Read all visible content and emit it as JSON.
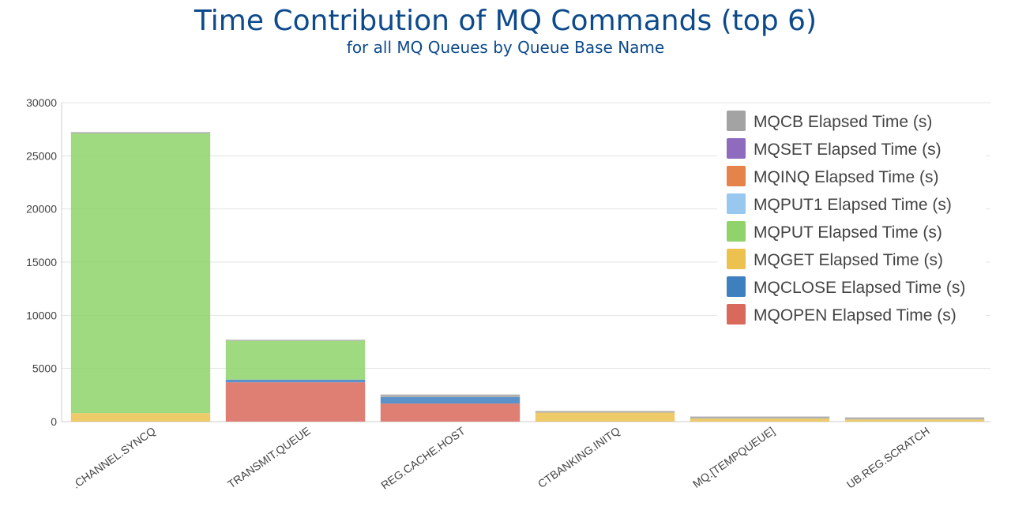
{
  "chart_data": {
    "type": "bar",
    "stacked": true,
    "title": "Time Contribution of MQ Commands (top 6)",
    "subtitle": "for all MQ Queues by Queue Base Name",
    "categories": [
      ".CHANNEL.SYNCQ",
      "TRANSMIT.QUEUE",
      "REG.CACHE.HOST",
      "CTBANKING.INITQ",
      "MQ.[TEMPQUEUE]",
      "UB.REG.SCRATCH"
    ],
    "ylim": [
      0,
      30000
    ],
    "yticks": [
      0,
      5000,
      10000,
      15000,
      20000,
      25000,
      30000
    ],
    "grid": true,
    "legend_position": "top-right",
    "series": [
      {
        "name": "MQOPEN Elapsed Time (s)",
        "color": "#d9695a",
        "values": [
          0,
          3700,
          1700,
          0,
          0,
          0
        ]
      },
      {
        "name": "MQCLOSE Elapsed Time (s)",
        "color": "#3d7fbf",
        "values": [
          0,
          250,
          600,
          0,
          0,
          0
        ]
      },
      {
        "name": "MQGET Elapsed Time (s)",
        "color": "#ecc14e",
        "values": [
          800,
          0,
          0,
          850,
          280,
          200
        ]
      },
      {
        "name": "MQPUT Elapsed Time (s)",
        "color": "#8fd36a",
        "values": [
          26300,
          3650,
          0,
          0,
          0,
          0
        ]
      },
      {
        "name": "MQPUT1 Elapsed Time (s)",
        "color": "#98c8f0",
        "values": [
          0,
          0,
          0,
          0,
          0,
          0
        ]
      },
      {
        "name": "MQINQ Elapsed Time (s)",
        "color": "#e5844a",
        "values": [
          0,
          0,
          0,
          0,
          0,
          0
        ]
      },
      {
        "name": "MQSET Elapsed Time (s)",
        "color": "#8e6bbf",
        "values": [
          0,
          0,
          0,
          0,
          0,
          0
        ]
      },
      {
        "name": "MQCB Elapsed Time (s)",
        "color": "#a3a3a3",
        "values": [
          130,
          100,
          250,
          150,
          200,
          200
        ]
      }
    ],
    "legend_order": [
      "MQCB Elapsed Time (s)",
      "MQSET Elapsed Time (s)",
      "MQINQ Elapsed Time (s)",
      "MQPUT1 Elapsed Time (s)",
      "MQPUT Elapsed Time (s)",
      "MQGET Elapsed Time (s)",
      "MQCLOSE Elapsed Time (s)",
      "MQOPEN Elapsed Time (s)"
    ]
  }
}
